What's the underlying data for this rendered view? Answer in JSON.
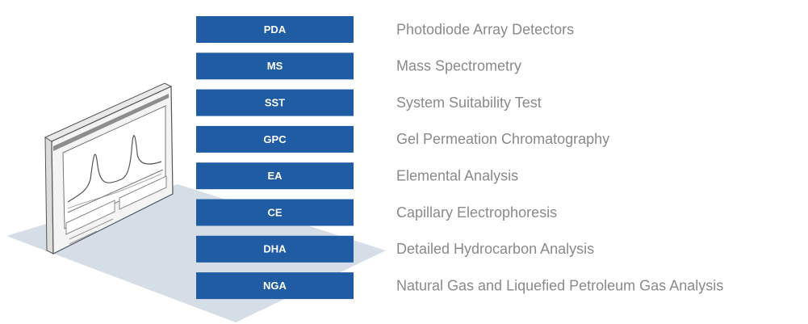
{
  "items": [
    {
      "abbr": "PDA",
      "name": "Photodiode Array Detectors"
    },
    {
      "abbr": "MS",
      "name": "Mass Spectrometry"
    },
    {
      "abbr": "SST",
      "name": "System Suitability Test"
    },
    {
      "abbr": "GPC",
      "name": "Gel Permeation Chromatography"
    },
    {
      "abbr": "EA",
      "name": "Elemental Analysis"
    },
    {
      "abbr": "CE",
      "name": "Capillary Electrophoresis"
    },
    {
      "abbr": "DHA",
      "name": "Detailed Hydrocarbon Analysis"
    },
    {
      "abbr": "NGA",
      "name": "Natural Gas and Liquefied Petroleum Gas Analysis"
    }
  ]
}
